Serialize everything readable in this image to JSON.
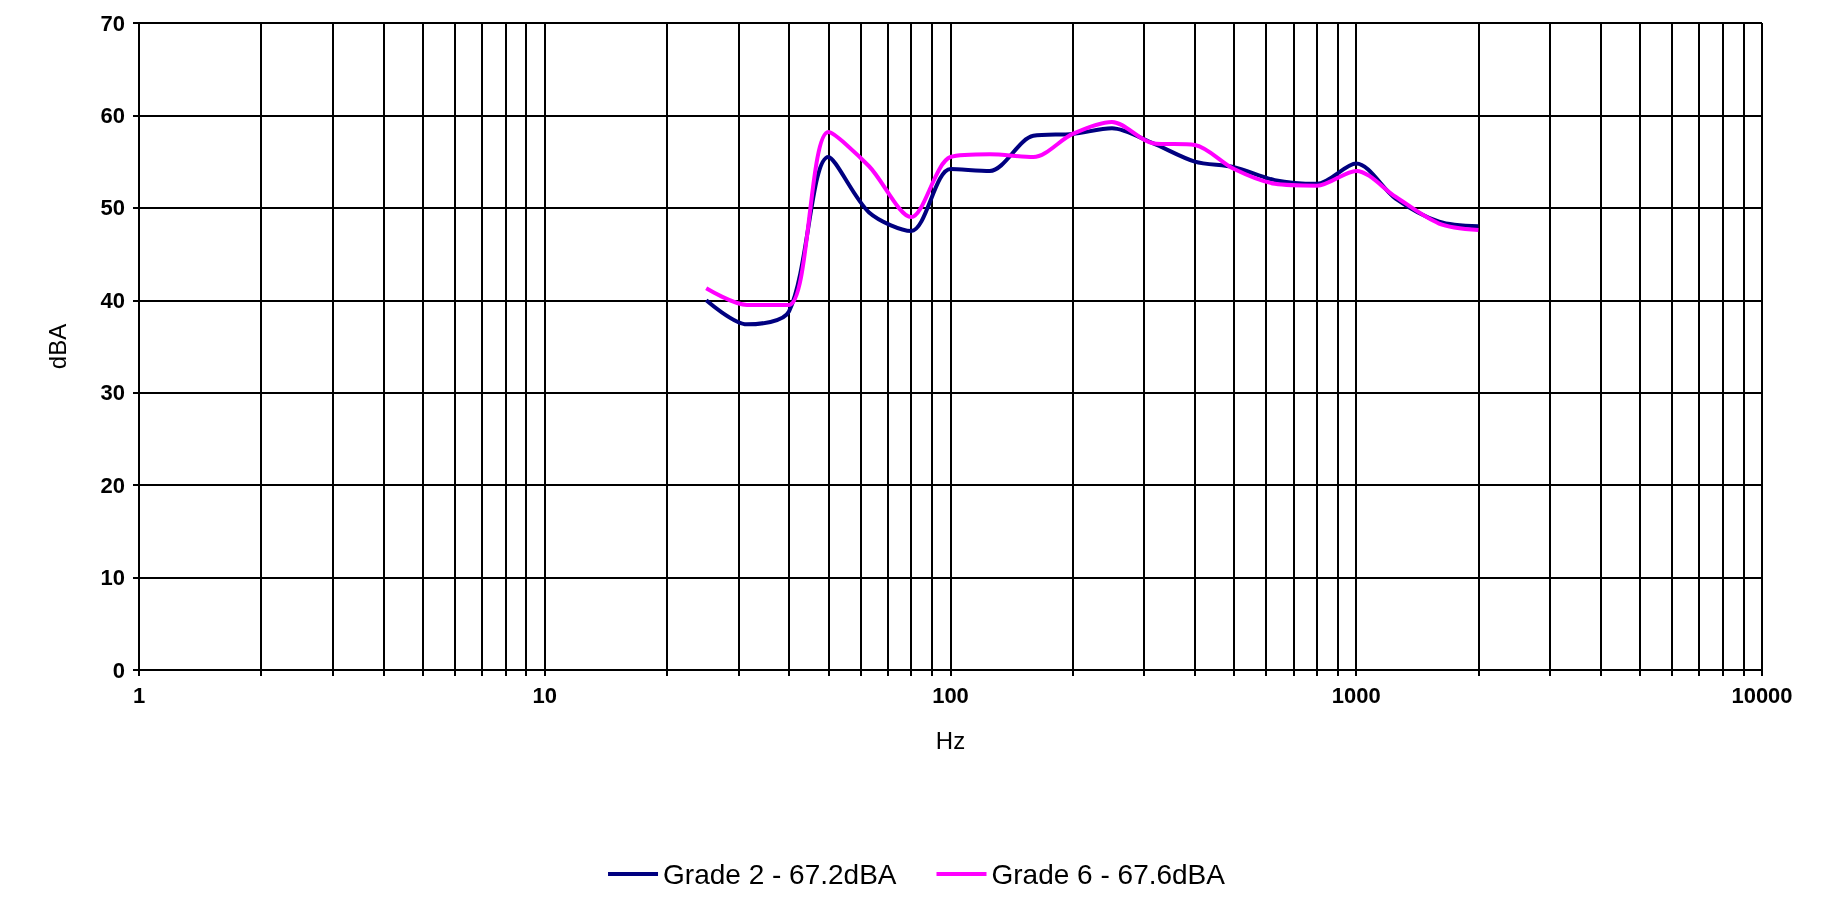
{
  "chart_data": {
    "type": "line",
    "xlabel": "Hz",
    "ylabel": "dBA",
    "log": "x",
    "grid": true,
    "legend": "bottom",
    "marker": "none",
    "line_style": "solid",
    "x": [
      25,
      31.5,
      40,
      50,
      63,
      80,
      100,
      125,
      160,
      200,
      250,
      315,
      400,
      500,
      630,
      800,
      1000,
      1250,
      1600,
      2000
    ],
    "series": [
      {
        "name": "Grade 2 - 67.2dBA",
        "color": "#000080",
        "values": [
          40,
          37.4,
          38.8,
          55.5,
          49.5,
          47.5,
          54.2,
          54,
          57.8,
          58,
          58.6,
          57,
          55,
          54.4,
          53,
          52.6,
          54.8,
          51,
          48.5,
          48
        ]
      },
      {
        "name": "Grade 6 - 67.6dBA",
        "color": "#ff00ff",
        "values": [
          41.3,
          39.5,
          39.5,
          58.2,
          54.5,
          49,
          55.5,
          55.8,
          55.5,
          58,
          59.3,
          57,
          56.8,
          54.2,
          52.6,
          52.4,
          54,
          51.2,
          48.3,
          47.6
        ]
      }
    ],
    "xlim": [
      1,
      10000
    ],
    "ylim": [
      0,
      70
    ],
    "xticks": [
      1,
      {
        "value": 2,
        "label": null
      },
      {
        "value": 3,
        "label": null
      },
      {
        "value": 4,
        "label": null
      },
      {
        "value": 5,
        "label": null
      },
      {
        "value": 6,
        "label": null
      },
      {
        "value": 7,
        "label": null
      },
      {
        "value": 8,
        "label": null
      },
      {
        "value": 9,
        "label": null
      },
      10,
      {
        "value": 20,
        "label": null
      },
      {
        "value": 30,
        "label": null
      },
      {
        "value": 40,
        "label": null
      },
      {
        "value": 50,
        "label": null
      },
      {
        "value": 60,
        "label": null
      },
      {
        "value": 70,
        "label": null
      },
      {
        "value": 80,
        "label": null
      },
      {
        "value": 90,
        "label": null
      },
      100,
      {
        "value": 200,
        "label": null
      },
      {
        "value": 300,
        "label": null
      },
      {
        "value": 400,
        "label": null
      },
      {
        "value": 500,
        "label": null
      },
      {
        "value": 600,
        "label": null
      },
      {
        "value": 700,
        "label": null
      },
      {
        "value": 800,
        "label": null
      },
      {
        "value": 900,
        "label": null
      },
      1000,
      {
        "value": 2000,
        "label": null
      },
      {
        "value": 3000,
        "label": null
      },
      {
        "value": 4000,
        "label": null
      },
      {
        "value": 5000,
        "label": null
      },
      {
        "value": 6000,
        "label": null
      },
      {
        "value": 7000,
        "label": null
      },
      {
        "value": 8000,
        "label": null
      },
      {
        "value": 9000,
        "label": null
      },
      10000
    ],
    "yticks": [
      0,
      10,
      20,
      30,
      40,
      50,
      60,
      70
    ]
  }
}
